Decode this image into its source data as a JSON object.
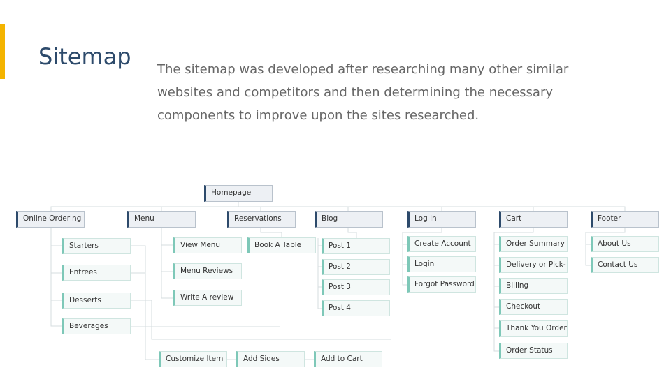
{
  "title": "Sitemap",
  "description": "The sitemap was developed after researching many other similar websites and competitors and then determining the necessary components to improve upon the sites researched.",
  "colors": {
    "accent": "#f4b400",
    "title": "#2d4a6b",
    "section_border": "#2d4a6b",
    "page_border": "#7ec8b8"
  },
  "sitemap": {
    "root": "Homepage",
    "sections": [
      {
        "label": "Online Ordering",
        "children": [
          "Starters",
          "Entrees",
          "Desserts",
          "Beverages"
        ]
      },
      {
        "label": "Menu",
        "children": [
          "View Menu",
          "Menu Reviews",
          "Write A review"
        ]
      },
      {
        "label": "Reservations",
        "children": [
          "Book A Table"
        ]
      },
      {
        "label": "Blog",
        "children": [
          "Post 1",
          "Post 2",
          "Post 3",
          "Post 4"
        ]
      },
      {
        "label": "Log in",
        "children": [
          "Create Account",
          "Login",
          "Forgot Password"
        ]
      },
      {
        "label": "Cart",
        "children": [
          "Order Summary",
          "Delivery or Pick-",
          "Billing",
          "Checkout",
          "Thank You Order",
          "Order Status"
        ]
      },
      {
        "label": "Footer",
        "children": [
          "About Us",
          "Contact Us"
        ]
      }
    ],
    "ordering_flow": [
      "Customize Item",
      "Add Sides",
      "Add to Cart"
    ]
  }
}
